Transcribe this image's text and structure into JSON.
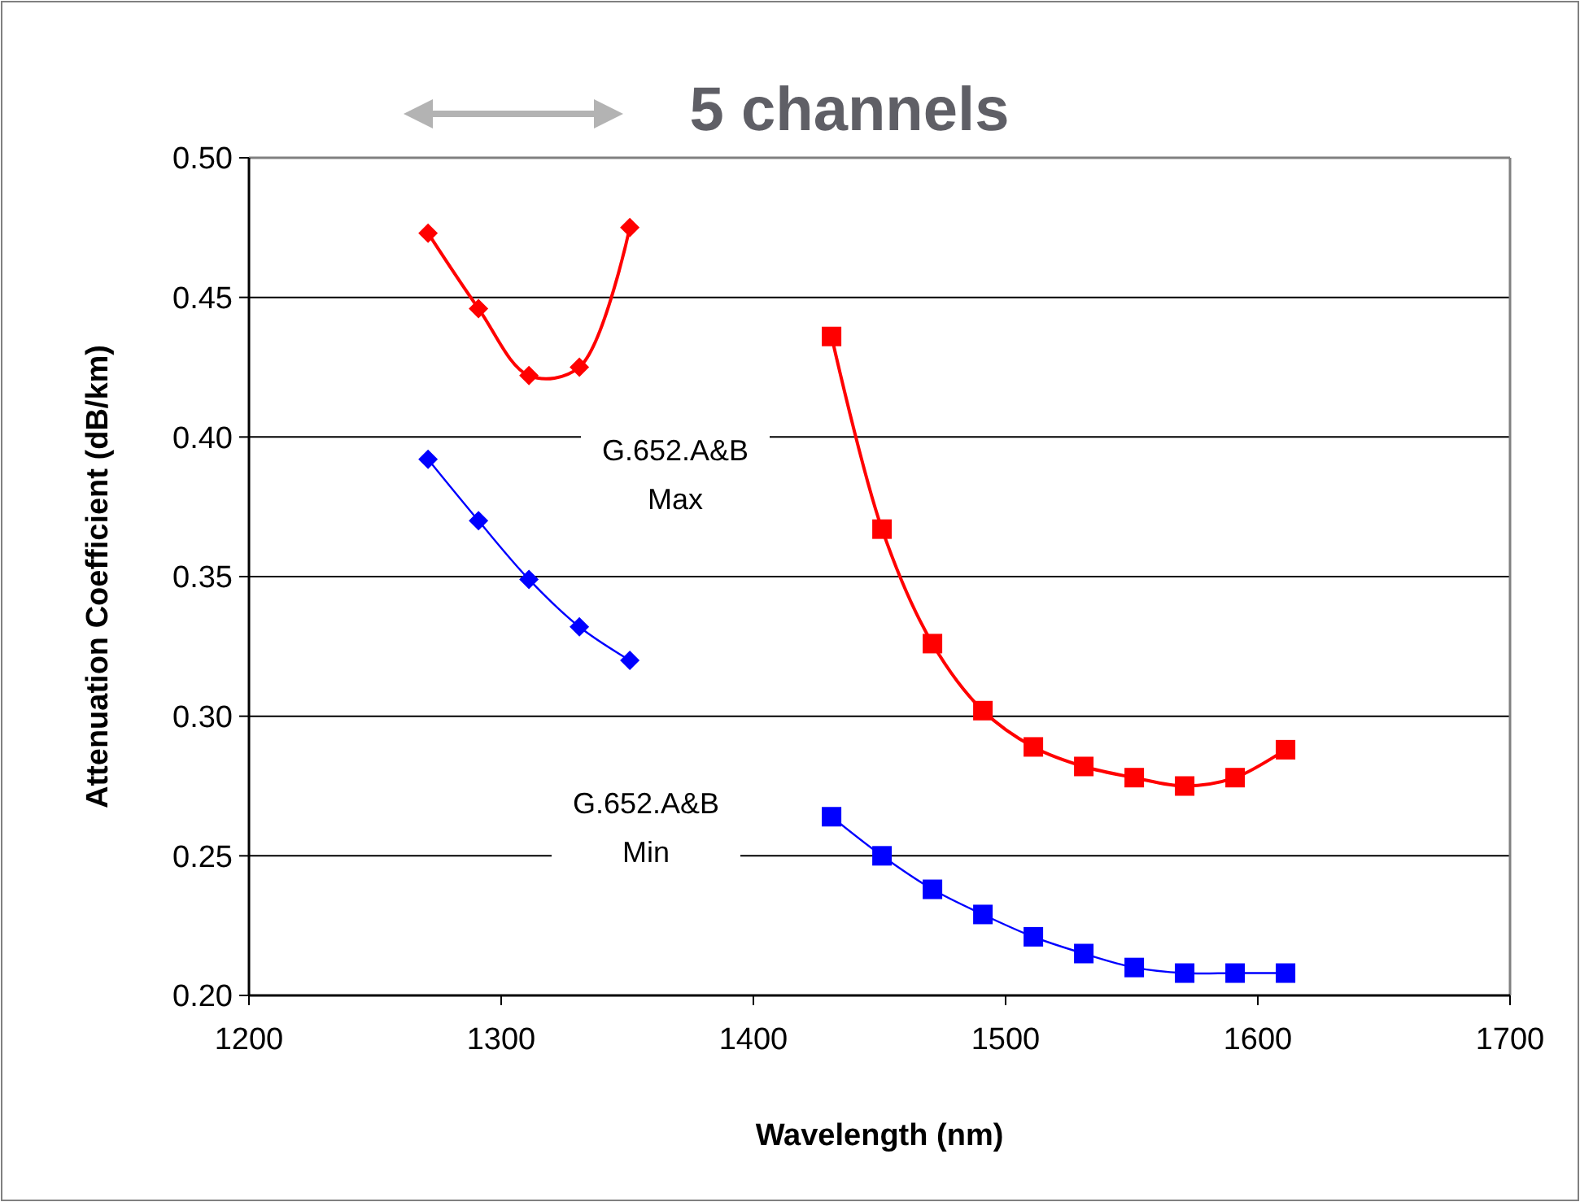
{
  "chart_data": {
    "type": "line",
    "xlabel": "Wavelength (nm)",
    "ylabel": "Attenuation Coefficient (dB/km)",
    "series": [
      {
        "color": "#ff0000",
        "marker": "diamond",
        "x": [
          1271,
          1291,
          1311,
          1331,
          1351
        ],
        "values": [
          0.473,
          0.446,
          0.422,
          0.425,
          0.475
        ]
      },
      {
        "color": "#0000ff",
        "marker": "diamond",
        "x": [
          1271,
          1291,
          1311,
          1331,
          1351
        ],
        "values": [
          0.392,
          0.37,
          0.349,
          0.332,
          0.32
        ]
      },
      {
        "color": "#ff0000",
        "marker": "square",
        "x": [
          1431,
          1451,
          1471,
          1491,
          1511,
          1531,
          1551,
          1571,
          1591,
          1611
        ],
        "values": [
          0.436,
          0.367,
          0.326,
          0.302,
          0.289,
          0.282,
          0.278,
          0.275,
          0.278,
          0.288
        ]
      },
      {
        "color": "#0000ff",
        "marker": "square",
        "x": [
          1431,
          1451,
          1471,
          1491,
          1511,
          1531,
          1551,
          1571,
          1591,
          1611
        ],
        "values": [
          0.264,
          0.25,
          0.238,
          0.229,
          0.221,
          0.215,
          0.21,
          0.208,
          0.208,
          0.208
        ]
      }
    ],
    "xlim": [
      1200,
      1700
    ],
    "xticks": [
      1200,
      1300,
      1400,
      1500,
      1600,
      1700
    ],
    "ylim": [
      0.2,
      0.5
    ],
    "yticks": [
      {
        "value": 0.2,
        "label": "0.20"
      },
      {
        "value": 0.25,
        "label": "0.25"
      },
      {
        "value": 0.3,
        "label": "0.30"
      },
      {
        "value": 0.35,
        "label": "0.35"
      },
      {
        "value": 0.4,
        "label": "0.40"
      },
      {
        "value": 0.45,
        "label": "0.45"
      },
      {
        "value": 0.5,
        "label": "0.50"
      }
    ],
    "grid": "y",
    "annotations": [
      "5 channels",
      "G.652.A&B\nMax",
      "G.652.A&B\nMin"
    ]
  }
}
